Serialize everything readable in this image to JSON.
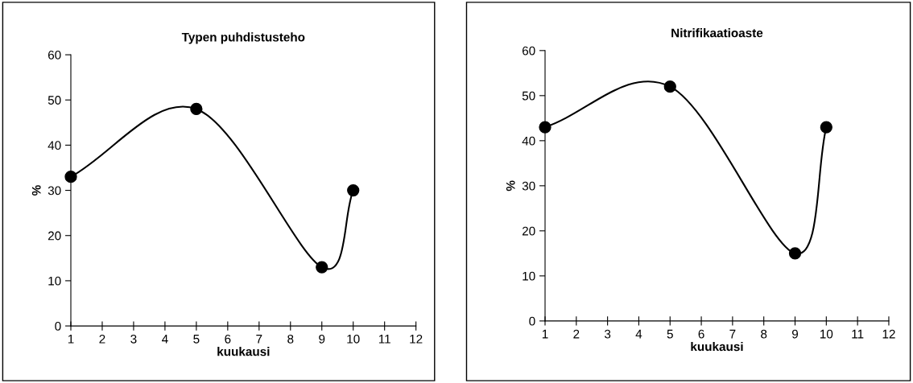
{
  "chart_data": [
    {
      "type": "line",
      "title": "Typen puhdistusteho",
      "xlabel": "kuukausi",
      "ylabel": "%",
      "x": [
        1,
        5,
        9,
        10
      ],
      "series": [
        {
          "color": "#000000",
          "values": [
            33,
            48,
            13,
            30
          ]
        }
      ],
      "xlim": [
        1,
        12
      ],
      "xticks": [
        1,
        2,
        3,
        4,
        5,
        6,
        7,
        8,
        9,
        10,
        11,
        12
      ],
      "ylim": [
        0,
        60
      ],
      "yticks": [
        0,
        10,
        20,
        30,
        40,
        50,
        60
      ],
      "marker": "circle",
      "line_style": "solid",
      "grid": false,
      "legend": false
    },
    {
      "type": "line",
      "title": "Nitrifikaatioaste",
      "xlabel": "kuukausi",
      "ylabel": "%",
      "x": [
        1,
        5,
        9,
        10
      ],
      "series": [
        {
          "color": "#000000",
          "values": [
            43,
            52,
            15,
            43
          ]
        }
      ],
      "xlim": [
        1,
        12
      ],
      "xticks": [
        1,
        2,
        3,
        4,
        5,
        6,
        7,
        8,
        9,
        10,
        11,
        12
      ],
      "ylim": [
        0,
        60
      ],
      "yticks": [
        0,
        10,
        20,
        30,
        40,
        50,
        60
      ],
      "marker": "circle",
      "line_style": "solid",
      "grid": false,
      "legend": false
    }
  ]
}
